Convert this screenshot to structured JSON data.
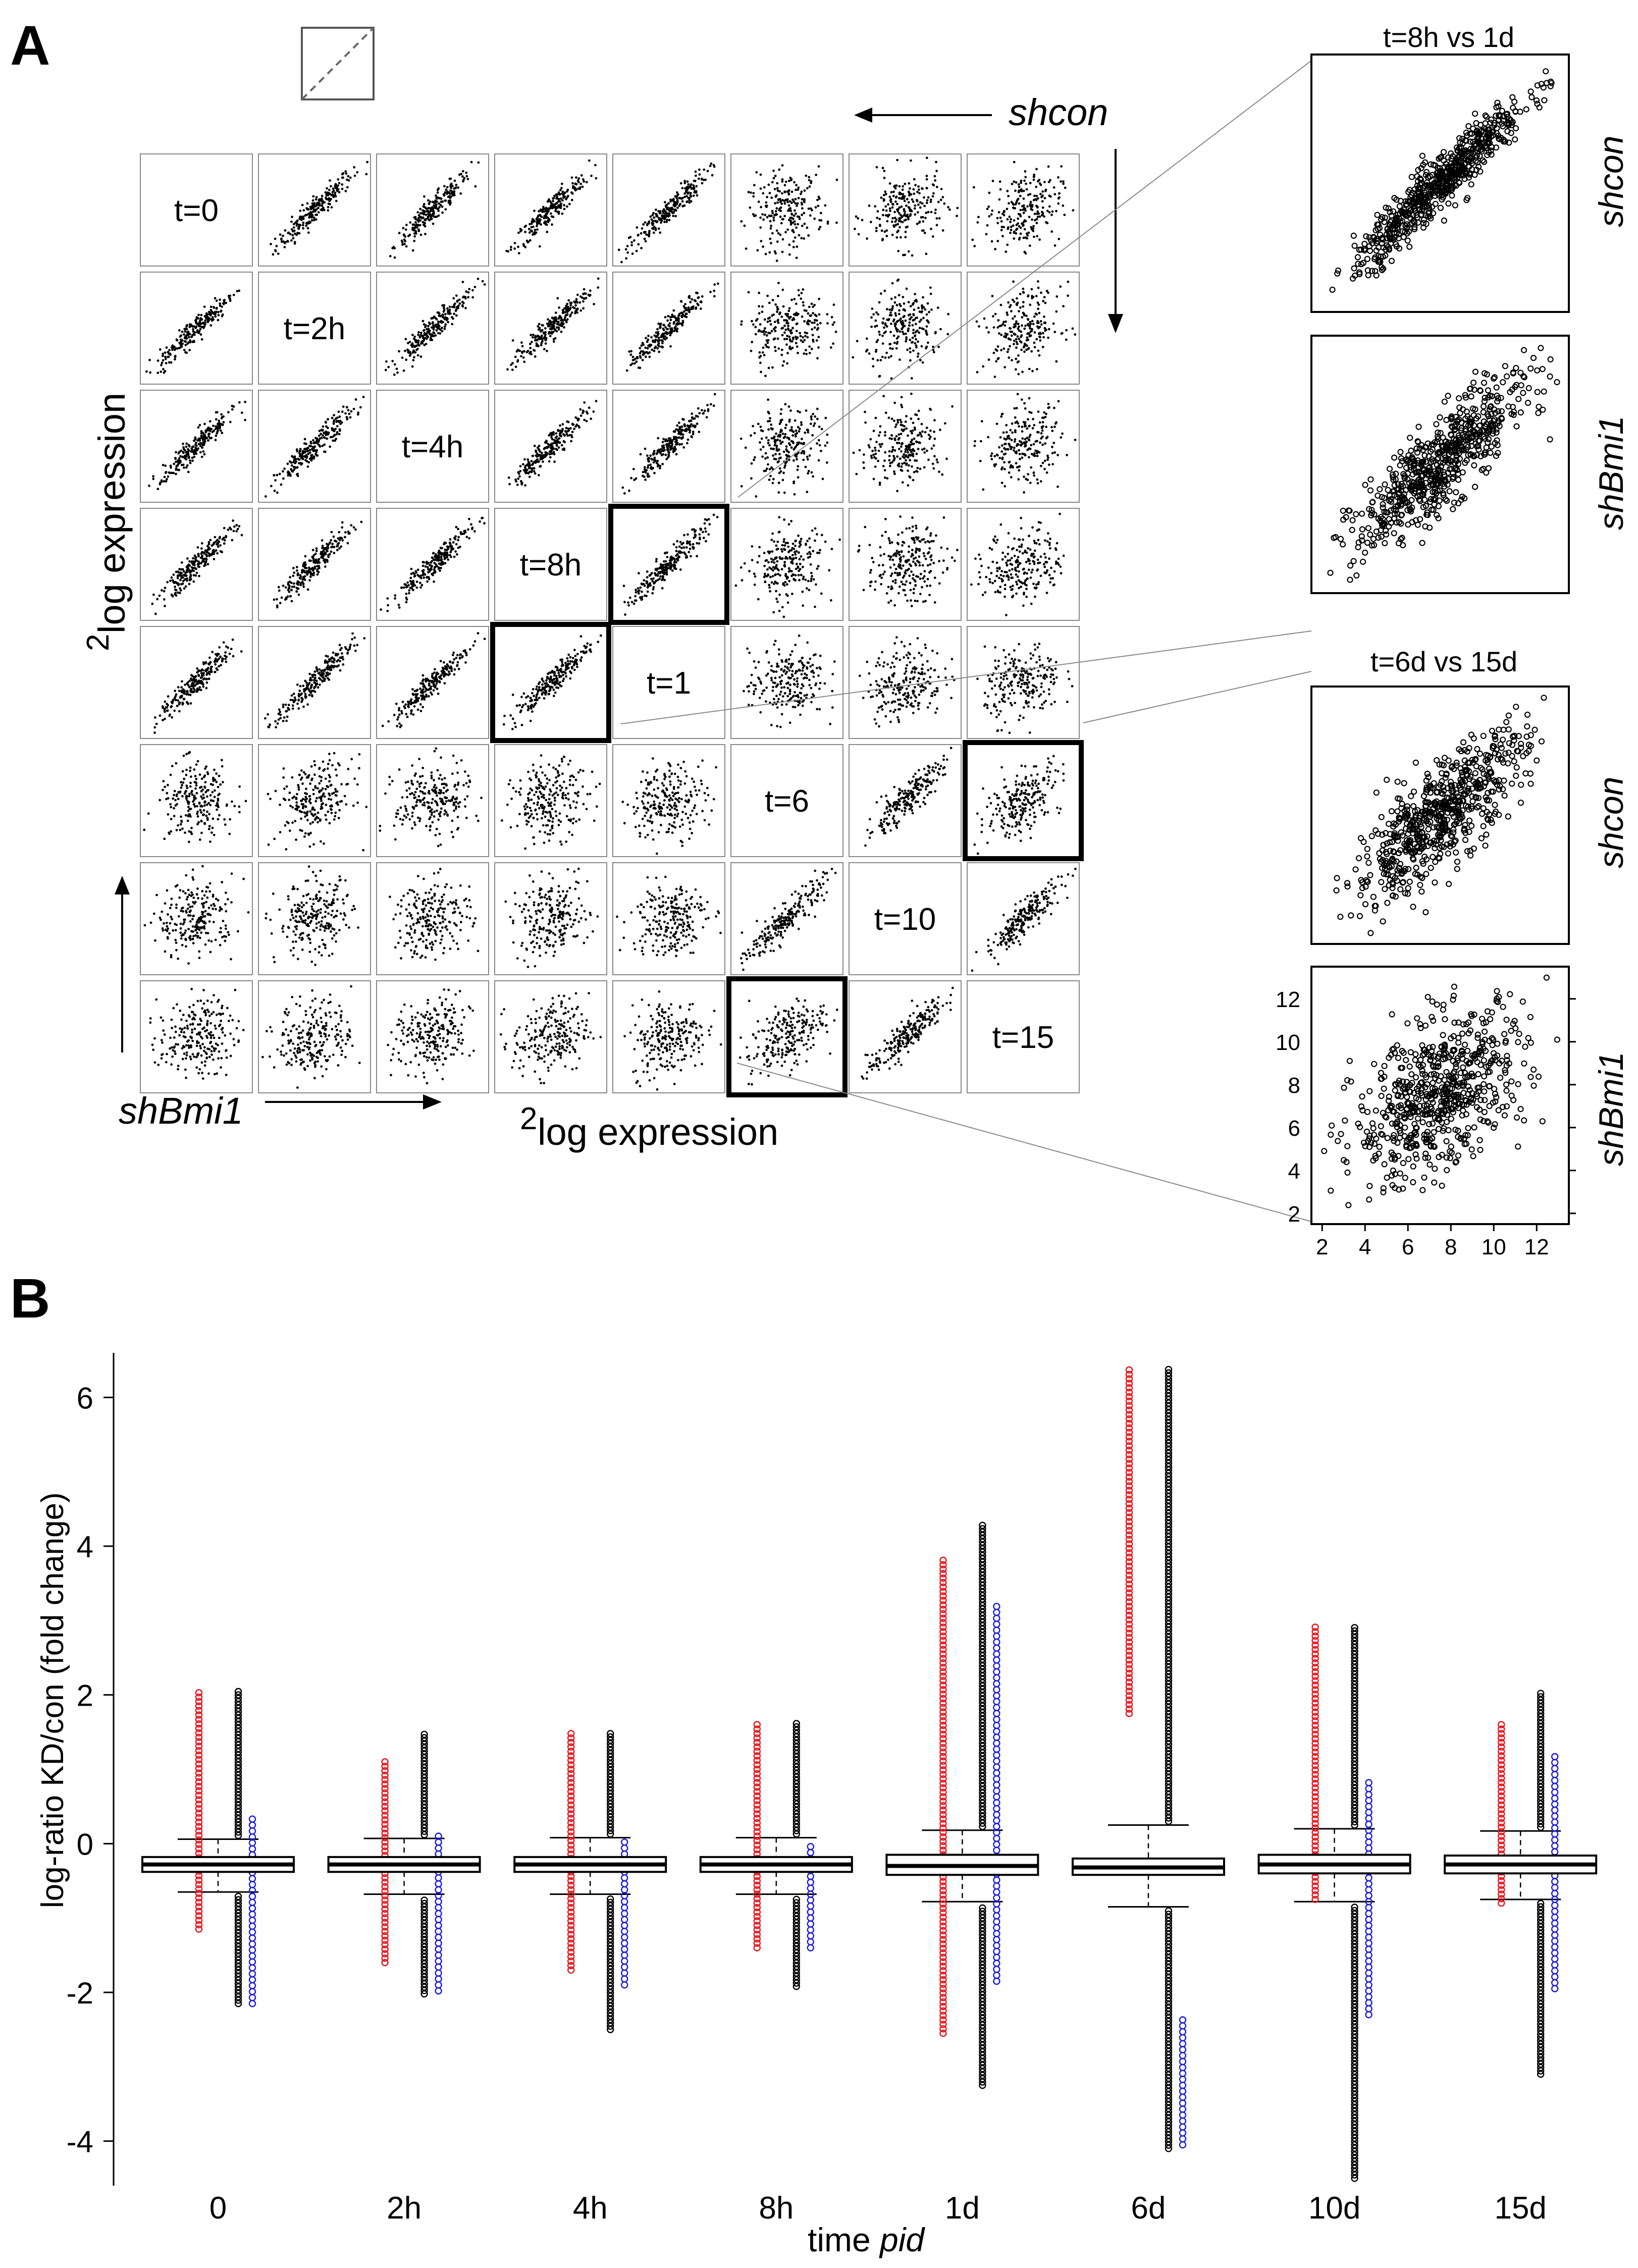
{
  "panel_a": {
    "label": "A",
    "shcon_label": "shcon",
    "shbmi1_label": "shBmi1",
    "xlabel": "log expression",
    "ylabel": "log expression",
    "superscript": "2",
    "diagonal_labels": [
      "t=0",
      "t=2h",
      "t=4h",
      "t=8h",
      "t=1",
      "t=6",
      "t=10",
      "t=15"
    ],
    "zoom_top_title": "t=8h vs 1d",
    "zoom_top_rows": [
      "shcon",
      "shBmi1"
    ],
    "zoom_bottom_title": "t=6d vs 15d",
    "zoom_bottom_rows": [
      "shcon",
      "shBmi1"
    ],
    "zoom_ticks": [
      "2",
      "4",
      "6",
      "8",
      "10",
      "12"
    ]
  },
  "panel_b": {
    "label": "B",
    "xlabel_prefix": "time ",
    "xlabel_italic": "pid",
    "ylabel": "log-ratio KD/con  (fold change)"
  },
  "colors": {
    "up": "#e8141c",
    "down": "#1a1ae0",
    "box": "#000000"
  },
  "chart_data": [
    {
      "type": "scatter",
      "title": "t=6d vs 15d (shBmi1)",
      "xlabel": "log expression",
      "ylabel": "log expression",
      "xlim": [
        1.5,
        13.5
      ],
      "ylim": [
        1.5,
        13.5
      ],
      "xticks": [
        2,
        4,
        6,
        8,
        10,
        12
      ],
      "yticks": [
        2,
        4,
        6,
        8,
        10,
        12
      ],
      "description": "about 700 genes, correlated cloud centred near (7.5, 7.5)"
    },
    {
      "type": "box",
      "title": "",
      "xlabel": "time pid",
      "ylabel": "log-ratio KD/con  (fold change)",
      "ylim": [
        -4.6,
        6.6
      ],
      "yticks": [
        -4,
        -2,
        0,
        2,
        4,
        6
      ],
      "categories": [
        "0",
        "2h",
        "4h",
        "8h",
        "1d",
        "6d",
        "10d",
        "15d"
      ],
      "series": [
        {
          "name": "box_q1",
          "values": [
            -0.38,
            -0.38,
            -0.38,
            -0.38,
            -0.42,
            -0.42,
            -0.4,
            -0.4
          ]
        },
        {
          "name": "median",
          "values": [
            -0.28,
            -0.28,
            -0.28,
            -0.28,
            -0.3,
            -0.32,
            -0.28,
            -0.28
          ]
        },
        {
          "name": "box_q3",
          "values": [
            -0.18,
            -0.18,
            -0.18,
            -0.18,
            -0.15,
            -0.2,
            -0.15,
            -0.16
          ]
        },
        {
          "name": "whisker_low",
          "values": [
            -0.65,
            -0.68,
            -0.68,
            -0.68,
            -0.78,
            -0.85,
            -0.78,
            -0.75
          ]
        },
        {
          "name": "whisker_high",
          "values": [
            0.06,
            0.07,
            0.08,
            0.08,
            0.18,
            0.25,
            0.2,
            0.17
          ]
        },
        {
          "name": "all_max",
          "values": [
            2.05,
            1.5,
            1.52,
            1.65,
            4.3,
            6.4,
            2.92,
            2.05
          ]
        },
        {
          "name": "all_min",
          "values": [
            -2.15,
            -2.02,
            -2.5,
            -1.92,
            -3.25,
            -4.1,
            -4.5,
            -3.1
          ]
        },
        {
          "name": "up_max",
          "values": [
            2.05,
            1.1,
            1.5,
            1.65,
            3.85,
            6.4,
            2.92,
            1.65
          ]
        },
        {
          "name": "up_min",
          "values": [
            -1.15,
            -1.6,
            -1.7,
            -1.4,
            -2.55,
            1.75,
            -0.75,
            -0.8
          ]
        },
        {
          "name": "down_max",
          "values": [
            0.4,
            0.1,
            0.05,
            0.0,
            3.2,
            -2.35,
            0.85,
            1.2
          ]
        },
        {
          "name": "down_min",
          "values": [
            -2.15,
            -1.98,
            -1.9,
            -1.4,
            -1.85,
            -4.05,
            -2.3,
            -1.95
          ]
        }
      ]
    }
  ]
}
